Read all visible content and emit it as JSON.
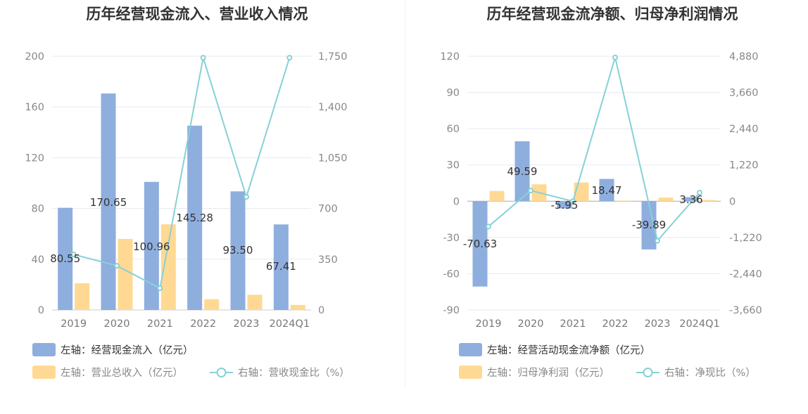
{
  "chart_data": [
    {
      "type": "bar",
      "title": "历年经营现金流入、营业收入情况",
      "categories": [
        "2019",
        "2020",
        "2021",
        "2022",
        "2023",
        "2024Q1"
      ],
      "y_left": {
        "min": 0,
        "max": 200,
        "ticks": [
          "0",
          "40",
          "80",
          "120",
          "160",
          "200"
        ]
      },
      "y_right": {
        "min": 0,
        "max": 1750,
        "ticks": [
          "0",
          "350",
          "700",
          "1,050",
          "1,400",
          "1,750"
        ]
      },
      "series": [
        {
          "name": "左轴：经营现金流入（亿元）",
          "kind": "bar",
          "axis": "left",
          "color": "#8eaede",
          "values": [
            80.55,
            170.65,
            100.96,
            145.28,
            93.5,
            67.41
          ],
          "labels": [
            "80.55",
            "170.65",
            "100.96",
            "145.28",
            "93.50",
            "67.41"
          ]
        },
        {
          "name": "左轴：营业总收入（亿元）",
          "kind": "bar",
          "axis": "left",
          "color": "#ffd993",
          "values": [
            21,
            56,
            67.5,
            8.5,
            12,
            4
          ]
        },
        {
          "name": "右轴：营收现金比（%）",
          "kind": "line",
          "axis": "right",
          "color": "#86d1d7",
          "values": [
            383,
            305,
            150,
            1740,
            780,
            1740
          ]
        }
      ],
      "grid": true,
      "legend": "bottom"
    },
    {
      "type": "bar",
      "title": "历年经营现金流净额、归母净利润情况",
      "categories": [
        "2019",
        "2020",
        "2021",
        "2022",
        "2023",
        "2024Q1"
      ],
      "y_left": {
        "min": -90,
        "max": 120,
        "ticks": [
          "-90",
          "-60",
          "-30",
          "0",
          "30",
          "60",
          "90",
          "120"
        ]
      },
      "y_right": {
        "min": -3660,
        "max": 4880,
        "ticks": [
          "-3,660",
          "-2,440",
          "-1,220",
          "0",
          "1,220",
          "2,440",
          "3,660",
          "4,880"
        ]
      },
      "series": [
        {
          "name": "左轴：经营活动现金流净额（亿元）",
          "kind": "bar",
          "axis": "left",
          "color": "#8eaede",
          "values": [
            -70.63,
            49.59,
            -5.95,
            18.47,
            -39.89,
            3.36
          ],
          "labels": [
            "-70.63",
            "49.59",
            "-5.95",
            "18.47",
            "-39.89",
            "3.36"
          ]
        },
        {
          "name": "左轴：归母净利润（亿元）",
          "kind": "bar",
          "axis": "left",
          "color": "#ffd993",
          "values": [
            8.5,
            14,
            15.5,
            0.5,
            3,
            1
          ]
        },
        {
          "name": "右轴：净现比（%）",
          "kind": "line",
          "axis": "right",
          "color": "#86d1d7",
          "values": [
            -850,
            360,
            0,
            4840,
            -1330,
            290
          ]
        }
      ],
      "grid": true,
      "legend": "bottom"
    }
  ]
}
